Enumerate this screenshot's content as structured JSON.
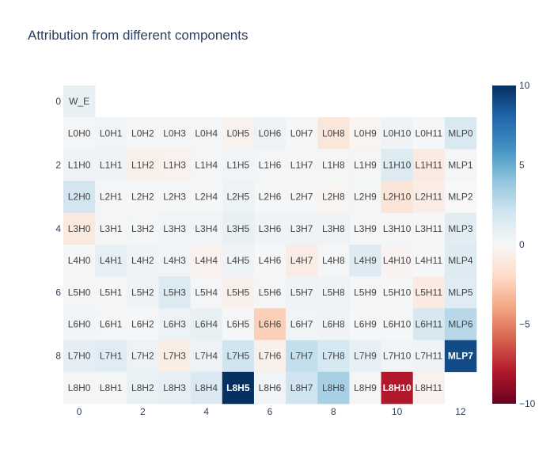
{
  "chart_data": {
    "type": "heatmap",
    "title": "Attribution from different components",
    "xlabel": "",
    "ylabel": "",
    "x_ticks": [
      0,
      2,
      4,
      6,
      8,
      10,
      12
    ],
    "y_ticks": [
      0,
      2,
      4,
      6,
      8
    ],
    "y_reversed": true,
    "n_cols": 13,
    "n_rows": 10,
    "zlim": [
      -10,
      10
    ],
    "colorscale": "RdBu",
    "colorbar_ticks": [
      10,
      5,
      0,
      -5,
      -10
    ],
    "colorbar_tick_labels": [
      "10",
      "5",
      "0",
      "−5",
      "−10"
    ],
    "rows": [
      {
        "labels": [
          "W_E",
          "",
          "",
          "",
          "",
          "",
          "",
          "",
          "",
          "",
          "",
          "",
          ""
        ],
        "values": [
          0.8,
          null,
          null,
          null,
          null,
          null,
          null,
          null,
          null,
          null,
          null,
          null,
          null
        ]
      },
      {
        "labels": [
          "L0H0",
          "L0H1",
          "L0H2",
          "L0H3",
          "L0H4",
          "L0H5",
          "L0H6",
          "L0H7",
          "L0H8",
          "L0H9",
          "L0H10",
          "L0H11",
          "MLP0"
        ],
        "values": [
          0.2,
          0.3,
          0.1,
          0.2,
          0.2,
          -0.4,
          0.6,
          0.1,
          -1.2,
          -0.2,
          0.4,
          0.1,
          1.6
        ]
      },
      {
        "labels": [
          "L1H0",
          "L1H1",
          "L1H2",
          "L1H3",
          "L1H4",
          "L1H5",
          "L1H6",
          "L1H7",
          "L1H8",
          "L1H9",
          "L1H10",
          "L1H11",
          "MLP1"
        ],
        "values": [
          0.4,
          0.4,
          -0.6,
          -0.4,
          0.2,
          0.3,
          0.2,
          0.2,
          0.2,
          0.2,
          1.4,
          -0.9,
          0.2
        ]
      },
      {
        "labels": [
          "L2H0",
          "L2H1",
          "L2H2",
          "L2H3",
          "L2H4",
          "L2H5",
          "L2H6",
          "L2H7",
          "L2H8",
          "L2H9",
          "L2H10",
          "L2H11",
          "MLP2"
        ],
        "values": [
          1.9,
          0.2,
          0.1,
          0.1,
          0.1,
          0.6,
          0.1,
          0.1,
          -0.2,
          0.2,
          -1.3,
          -0.7,
          0.0
        ]
      },
      {
        "labels": [
          "L3H0",
          "L3H1",
          "L3H2",
          "L3H3",
          "L3H4",
          "L3H5",
          "L3H6",
          "L3H7",
          "L3H8",
          "L3H9",
          "L3H10",
          "L3H11",
          "MLP3"
        ],
        "values": [
          -1.0,
          0.2,
          0.2,
          0.3,
          0.3,
          0.8,
          0.4,
          0.4,
          0.4,
          0.2,
          0.2,
          0.1,
          1.1
        ]
      },
      {
        "labels": [
          "L4H0",
          "L4H1",
          "L4H2",
          "L4H3",
          "L4H4",
          "L4H5",
          "L4H6",
          "L4H7",
          "L4H8",
          "L4H9",
          "L4H10",
          "L4H11",
          "MLP4"
        ],
        "values": [
          0.1,
          0.9,
          0.5,
          0.3,
          -0.4,
          0.4,
          0.1,
          -0.8,
          0.2,
          1.3,
          -0.3,
          0.1,
          1.3
        ]
      },
      {
        "labels": [
          "L5H0",
          "L5H1",
          "L5H2",
          "L5H3",
          "L5H4",
          "L5H5",
          "L5H6",
          "L5H7",
          "L5H8",
          "L5H9",
          "L5H10",
          "L5H11",
          "MLP5"
        ],
        "values": [
          0.2,
          0.1,
          0.5,
          1.4,
          0.2,
          -0.5,
          0.2,
          0.5,
          0.5,
          0.2,
          0.1,
          -0.9,
          1.2
        ]
      },
      {
        "labels": [
          "L6H0",
          "L6H1",
          "L6H2",
          "L6H3",
          "L6H4",
          "L6H5",
          "L6H6",
          "L6H7",
          "L6H8",
          "L6H9",
          "L6H10",
          "L6H11",
          "MLP6"
        ],
        "values": [
          0.3,
          0.2,
          0.1,
          0.6,
          0.8,
          0.1,
          -2.4,
          0.3,
          0.4,
          0.1,
          0.1,
          1.7,
          2.8
        ]
      },
      {
        "labels": [
          "L7H0",
          "L7H1",
          "L7H2",
          "L7H3",
          "L7H4",
          "L7H5",
          "L7H6",
          "L7H7",
          "L7H8",
          "L7H9",
          "L7H10",
          "L7H11",
          "MLP7"
        ],
        "values": [
          1.0,
          1.2,
          0.6,
          -0.7,
          0.6,
          2.0,
          -0.5,
          2.4,
          1.8,
          0.9,
          0.3,
          0.5,
          9.0
        ]
      },
      {
        "labels": [
          "L8H0",
          "L8H1",
          "L8H2",
          "L8H3",
          "L8H4",
          "L8H5",
          "L8H6",
          "L8H7",
          "L8H8",
          "L8H9",
          "L8H10",
          "L8H11",
          ""
        ],
        "values": [
          0.2,
          0.2,
          0.7,
          0.9,
          1.5,
          10.0,
          0.3,
          2.0,
          3.3,
          0.2,
          -8.0,
          -0.4,
          null
        ]
      }
    ]
  }
}
